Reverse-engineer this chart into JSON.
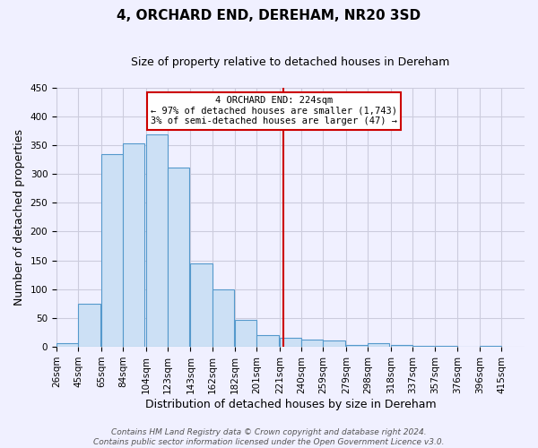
{
  "title": "4, ORCHARD END, DEREHAM, NR20 3SD",
  "subtitle": "Size of property relative to detached houses in Dereham",
  "xlabel": "Distribution of detached houses by size in Dereham",
  "ylabel": "Number of detached properties",
  "bar_left_edges": [
    26,
    45,
    65,
    84,
    104,
    123,
    143,
    162,
    182,
    201,
    221,
    240,
    259,
    279,
    298,
    318,
    337,
    357,
    376,
    396
  ],
  "bar_heights": [
    7,
    75,
    335,
    353,
    368,
    311,
    144,
    99,
    46,
    20,
    15,
    13,
    11,
    4,
    6,
    4,
    2,
    1,
    0,
    1
  ],
  "bin_width": 19,
  "bar_facecolor": "#cce0f5",
  "bar_edgecolor": "#5599cc",
  "vline_x": 224,
  "vline_color": "#cc0000",
  "annotation_line1": "4 ORCHARD END: 224sqm",
  "annotation_line2": "← 97% of detached houses are smaller (1,743)",
  "annotation_line3": "3% of semi-detached houses are larger (47) →",
  "annotation_box_color": "#cc0000",
  "ylim": [
    0,
    450
  ],
  "xlim_left": 26,
  "xlim_right": 435,
  "tick_labels": [
    "26sqm",
    "45sqm",
    "65sqm",
    "84sqm",
    "104sqm",
    "123sqm",
    "143sqm",
    "162sqm",
    "182sqm",
    "201sqm",
    "221sqm",
    "240sqm",
    "259sqm",
    "279sqm",
    "298sqm",
    "318sqm",
    "337sqm",
    "357sqm",
    "376sqm",
    "396sqm",
    "415sqm"
  ],
  "tick_positions": [
    26,
    45,
    65,
    84,
    104,
    123,
    143,
    162,
    182,
    201,
    221,
    240,
    259,
    279,
    298,
    318,
    337,
    357,
    376,
    396,
    415
  ],
  "footnote1": "Contains HM Land Registry data © Crown copyright and database right 2024.",
  "footnote2": "Contains public sector information licensed under the Open Government Licence v3.0.",
  "background_color": "#f0f0ff",
  "grid_color": "#ccccdd",
  "title_fontsize": 11,
  "subtitle_fontsize": 9,
  "xlabel_fontsize": 9,
  "ylabel_fontsize": 9,
  "tick_fontsize": 7.5,
  "footnote_fontsize": 6.5
}
